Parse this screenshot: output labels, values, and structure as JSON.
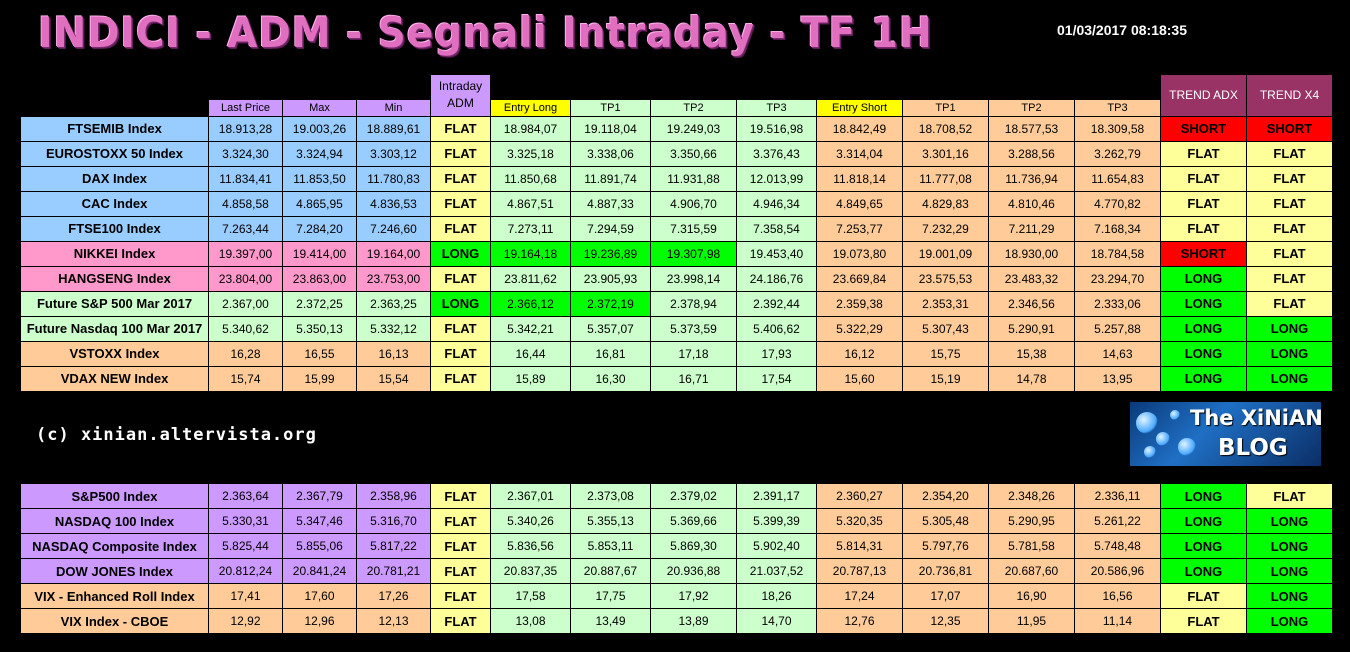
{
  "title": "INDICI - ADM - Segnali Intraday - TF 1H",
  "timestamp": "01/03/2017 08:18:35",
  "copyright": "(c) xinian.altervista.org",
  "logo": {
    "line1": "The XiNiAN's",
    "line2": "BLOG"
  },
  "headers": [
    "",
    "Last Price",
    "Max",
    "Min",
    "Intraday ADM",
    "Entry Long",
    "TP1",
    "TP2",
    "TP3",
    "Entry Short",
    "TP1",
    "TP2",
    "TP3",
    "TREND ADX",
    "TREND X4"
  ],
  "table1": [
    {
      "name": "FTSEMIB Index",
      "nc": "blue",
      "vals": [
        "18.913,28",
        "19.003,26",
        "18.889,61"
      ],
      "vc": "blue",
      "adm": "FLAT",
      "admc": "yellow",
      "long": [
        "18.984,07",
        "19.118,04",
        "19.249,03",
        "19.516,98"
      ],
      "lc": [
        "lgreen",
        "lgreen",
        "lgreen",
        "lgreen"
      ],
      "short": [
        "18.842,49",
        "18.708,52",
        "18.577,53",
        "18.309,58"
      ],
      "adx": "SHORT",
      "adxc": "red",
      "x4": "SHORT",
      "x4c": "red"
    },
    {
      "name": "EUROSTOXX 50 Index",
      "nc": "blue",
      "vals": [
        "3.324,30",
        "3.324,94",
        "3.303,12"
      ],
      "vc": "blue",
      "adm": "FLAT",
      "admc": "yellow",
      "long": [
        "3.325,18",
        "3.338,06",
        "3.350,66",
        "3.376,43"
      ],
      "lc": [
        "lgreen",
        "lgreen",
        "lgreen",
        "lgreen"
      ],
      "short": [
        "3.314,04",
        "3.301,16",
        "3.288,56",
        "3.262,79"
      ],
      "adx": "FLAT",
      "adxc": "yellow",
      "x4": "FLAT",
      "x4c": "yellow"
    },
    {
      "name": "DAX Index",
      "nc": "blue",
      "vals": [
        "11.834,41",
        "11.853,50",
        "11.780,83"
      ],
      "vc": "blue",
      "adm": "FLAT",
      "admc": "yellow",
      "long": [
        "11.850,68",
        "11.891,74",
        "11.931,88",
        "12.013,99"
      ],
      "lc": [
        "lgreen",
        "lgreen",
        "lgreen",
        "lgreen"
      ],
      "short": [
        "11.818,14",
        "11.777,08",
        "11.736,94",
        "11.654,83"
      ],
      "adx": "FLAT",
      "adxc": "yellow",
      "x4": "FLAT",
      "x4c": "yellow"
    },
    {
      "name": "CAC Index",
      "nc": "blue",
      "vals": [
        "4.858,58",
        "4.865,95",
        "4.836,53"
      ],
      "vc": "blue",
      "adm": "FLAT",
      "admc": "yellow",
      "long": [
        "4.867,51",
        "4.887,33",
        "4.906,70",
        "4.946,34"
      ],
      "lc": [
        "lgreen",
        "lgreen",
        "lgreen",
        "lgreen"
      ],
      "short": [
        "4.849,65",
        "4.829,83",
        "4.810,46",
        "4.770,82"
      ],
      "adx": "FLAT",
      "adxc": "yellow",
      "x4": "FLAT",
      "x4c": "yellow"
    },
    {
      "name": "FTSE100 Index",
      "nc": "blue",
      "vals": [
        "7.263,44",
        "7.284,20",
        "7.246,60"
      ],
      "vc": "blue",
      "adm": "FLAT",
      "admc": "yellow",
      "long": [
        "7.273,11",
        "7.294,59",
        "7.315,59",
        "7.358,54"
      ],
      "lc": [
        "lgreen",
        "lgreen",
        "lgreen",
        "lgreen"
      ],
      "short": [
        "7.253,77",
        "7.232,29",
        "7.211,29",
        "7.168,34"
      ],
      "adx": "FLAT",
      "adxc": "yellow",
      "x4": "FLAT",
      "x4c": "yellow"
    },
    {
      "name": "NIKKEI Index",
      "nc": "pink",
      "vals": [
        "19.397,00",
        "19.414,00",
        "19.164,00"
      ],
      "vc": "pink",
      "adm": "LONG",
      "admc": "bgreen",
      "long": [
        "19.164,18",
        "19.236,89",
        "19.307,98",
        "19.453,40"
      ],
      "lc": [
        "bgreen",
        "bgreen",
        "bgreen",
        "lgreen"
      ],
      "short": [
        "19.073,80",
        "19.001,09",
        "18.930,00",
        "18.784,58"
      ],
      "adx": "SHORT",
      "adxc": "red",
      "x4": "FLAT",
      "x4c": "yellow"
    },
    {
      "name": "HANGSENG Index",
      "nc": "pink",
      "vals": [
        "23.804,00",
        "23.863,00",
        "23.753,00"
      ],
      "vc": "pink",
      "adm": "FLAT",
      "admc": "yellow",
      "long": [
        "23.811,62",
        "23.905,93",
        "23.998,14",
        "24.186,76"
      ],
      "lc": [
        "lgreen",
        "lgreen",
        "lgreen",
        "lgreen"
      ],
      "short": [
        "23.669,84",
        "23.575,53",
        "23.483,32",
        "23.294,70"
      ],
      "adx": "LONG",
      "adxc": "bgreen",
      "x4": "FLAT",
      "x4c": "yellow"
    },
    {
      "name": "Future S&P 500 Mar 2017",
      "nc": "lgreen",
      "vals": [
        "2.367,00",
        "2.372,25",
        "2.363,25"
      ],
      "vc": "lgreen",
      "adm": "LONG",
      "admc": "bgreen",
      "long": [
        "2.366,12",
        "2.372,19",
        "2.378,94",
        "2.392,44"
      ],
      "lc": [
        "bgreen",
        "bgreen",
        "lgreen",
        "lgreen"
      ],
      "short": [
        "2.359,38",
        "2.353,31",
        "2.346,56",
        "2.333,06"
      ],
      "adx": "LONG",
      "adxc": "bgreen",
      "x4": "FLAT",
      "x4c": "yellow"
    },
    {
      "name": "Future Nasdaq 100 Mar 2017",
      "nc": "lgreen",
      "vals": [
        "5.340,62",
        "5.350,13",
        "5.332,12"
      ],
      "vc": "lgreen",
      "adm": "FLAT",
      "admc": "yellow",
      "long": [
        "5.342,21",
        "5.357,07",
        "5.373,59",
        "5.406,62"
      ],
      "lc": [
        "lgreen",
        "lgreen",
        "lgreen",
        "lgreen"
      ],
      "short": [
        "5.322,29",
        "5.307,43",
        "5.290,91",
        "5.257,88"
      ],
      "adx": "LONG",
      "adxc": "bgreen",
      "x4": "LONG",
      "x4c": "bgreen"
    },
    {
      "name": "VSTOXX Index",
      "nc": "orange",
      "vals": [
        "16,28",
        "16,55",
        "16,13"
      ],
      "vc": "orange",
      "adm": "FLAT",
      "admc": "yellow",
      "long": [
        "16,44",
        "16,81",
        "17,18",
        "17,93"
      ],
      "lc": [
        "lgreen",
        "lgreen",
        "lgreen",
        "lgreen"
      ],
      "short": [
        "16,12",
        "15,75",
        "15,38",
        "14,63"
      ],
      "adx": "LONG",
      "adxc": "bgreen",
      "x4": "LONG",
      "x4c": "bgreen"
    },
    {
      "name": "VDAX NEW Index",
      "nc": "orange",
      "vals": [
        "15,74",
        "15,99",
        "15,54"
      ],
      "vc": "orange",
      "adm": "FLAT",
      "admc": "yellow",
      "long": [
        "15,89",
        "16,30",
        "16,71",
        "17,54"
      ],
      "lc": [
        "lgreen",
        "lgreen",
        "lgreen",
        "lgreen"
      ],
      "short": [
        "15,60",
        "15,19",
        "14,78",
        "13,95"
      ],
      "adx": "LONG",
      "adxc": "bgreen",
      "x4": "LONG",
      "x4c": "bgreen"
    }
  ],
  "table2": [
    {
      "name": "S&P500 Index",
      "nc": "purple",
      "vals": [
        "2.363,64",
        "2.367,79",
        "2.358,96"
      ],
      "vc": "purple",
      "adm": "FLAT",
      "admc": "yellow",
      "long": [
        "2.367,01",
        "2.373,08",
        "2.379,02",
        "2.391,17"
      ],
      "lc": [
        "lgreen",
        "lgreen",
        "lgreen",
        "lgreen"
      ],
      "short": [
        "2.360,27",
        "2.354,20",
        "2.348,26",
        "2.336,11"
      ],
      "adx": "LONG",
      "adxc": "bgreen",
      "x4": "FLAT",
      "x4c": "yellow"
    },
    {
      "name": "NASDAQ 100 Index",
      "nc": "purple",
      "vals": [
        "5.330,31",
        "5.347,46",
        "5.316,70"
      ],
      "vc": "purple",
      "adm": "FLAT",
      "admc": "yellow",
      "long": [
        "5.340,26",
        "5.355,13",
        "5.369,66",
        "5.399,39"
      ],
      "lc": [
        "lgreen",
        "lgreen",
        "lgreen",
        "lgreen"
      ],
      "short": [
        "5.320,35",
        "5.305,48",
        "5.290,95",
        "5.261,22"
      ],
      "adx": "LONG",
      "adxc": "bgreen",
      "x4": "LONG",
      "x4c": "bgreen"
    },
    {
      "name": "NASDAQ Composite Index",
      "nc": "purple",
      "vals": [
        "5.825,44",
        "5.855,06",
        "5.817,22"
      ],
      "vc": "purple",
      "adm": "FLAT",
      "admc": "yellow",
      "long": [
        "5.836,56",
        "5.853,11",
        "5.869,30",
        "5.902,40"
      ],
      "lc": [
        "lgreen",
        "lgreen",
        "lgreen",
        "lgreen"
      ],
      "short": [
        "5.814,31",
        "5.797,76",
        "5.781,58",
        "5.748,48"
      ],
      "adx": "LONG",
      "adxc": "bgreen",
      "x4": "LONG",
      "x4c": "bgreen"
    },
    {
      "name": "DOW JONES Index",
      "nc": "purple",
      "vals": [
        "20.812,24",
        "20.841,24",
        "20.781,21"
      ],
      "vc": "purple",
      "adm": "FLAT",
      "admc": "yellow",
      "long": [
        "20.837,35",
        "20.887,67",
        "20.936,88",
        "21.037,52"
      ],
      "lc": [
        "lgreen",
        "lgreen",
        "lgreen",
        "lgreen"
      ],
      "short": [
        "20.787,13",
        "20.736,81",
        "20.687,60",
        "20.586,96"
      ],
      "adx": "LONG",
      "adxc": "bgreen",
      "x4": "LONG",
      "x4c": "bgreen"
    },
    {
      "name": "VIX - Enhanced Roll Index",
      "nc": "orange",
      "vals": [
        "17,41",
        "17,60",
        "17,26"
      ],
      "vc": "orange",
      "adm": "FLAT",
      "admc": "yellow",
      "long": [
        "17,58",
        "17,75",
        "17,92",
        "18,26"
      ],
      "lc": [
        "lgreen",
        "lgreen",
        "lgreen",
        "lgreen"
      ],
      "short": [
        "17,24",
        "17,07",
        "16,90",
        "16,56"
      ],
      "adx": "FLAT",
      "adxc": "yellow",
      "x4": "LONG",
      "x4c": "bgreen"
    },
    {
      "name": "VIX Index - CBOE",
      "nc": "orange",
      "vals": [
        "12,92",
        "12,96",
        "12,13"
      ],
      "vc": "orange",
      "adm": "FLAT",
      "admc": "yellow",
      "long": [
        "13,08",
        "13,49",
        "13,89",
        "14,70"
      ],
      "lc": [
        "lgreen",
        "lgreen",
        "lgreen",
        "lgreen"
      ],
      "short": [
        "12,76",
        "12,35",
        "11,95",
        "11,14"
      ],
      "adx": "FLAT",
      "adxc": "yellow",
      "x4": "LONG",
      "x4c": "bgreen"
    }
  ]
}
